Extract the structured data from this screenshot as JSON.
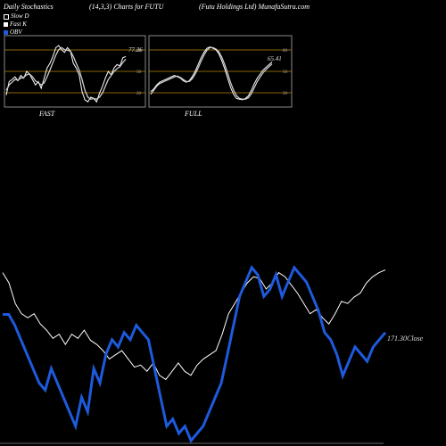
{
  "header": {
    "left": "Daily Stochastics",
    "mid": "(14,3,3) Charts for FUTU",
    "right": "(Futu  Holdings Ltd) MunafaSutra.com"
  },
  "legend": [
    {
      "label": "Slow  D",
      "color": "#ffffff"
    },
    {
      "label": "Fast K",
      "color": "#ffffff"
    },
    {
      "label": "OBV",
      "color": "#1e5adc"
    }
  ],
  "colors": {
    "price": "#ffffff",
    "obv": "#1e5adc",
    "band": "#b8860b",
    "panel_border": "#888888"
  },
  "chart_data": [
    {
      "type": "line",
      "title": "FAST",
      "value_label": "77.26",
      "levels": [
        20,
        50,
        80
      ],
      "level_labels": [
        "20",
        "50",
        "80"
      ],
      "ylim": [
        0,
        100
      ],
      "series": [
        {
          "values": [
            15,
            35,
            38,
            42,
            36,
            44,
            40,
            50,
            46,
            38,
            30,
            35,
            25,
            40,
            55,
            62,
            72,
            85,
            88,
            82,
            78,
            85,
            80,
            62,
            55,
            45,
            20,
            8,
            5,
            12,
            10,
            5,
            18,
            28,
            40,
            50,
            45,
            55,
            60,
            58,
            70,
            72
          ]
        },
        {
          "values": [
            22,
            30,
            34,
            38,
            37,
            40,
            41,
            45,
            46,
            42,
            36,
            33,
            30,
            33,
            42,
            52,
            63,
            74,
            82,
            85,
            82,
            81,
            80,
            72,
            62,
            52,
            38,
            22,
            12,
            9,
            10,
            9,
            12,
            18,
            28,
            38,
            44,
            50,
            54,
            57,
            63,
            68
          ]
        }
      ]
    },
    {
      "type": "line",
      "title": "FULL",
      "value_label": "65.41",
      "levels": [
        20,
        50,
        80
      ],
      "level_labels": [
        "20",
        "50",
        "80"
      ],
      "ylim": [
        0,
        100
      ],
      "series": [
        {
          "values": [
            20,
            24,
            30,
            34,
            36,
            38,
            40,
            42,
            44,
            42,
            40,
            36,
            34,
            36,
            42,
            50,
            60,
            70,
            78,
            84,
            86,
            84,
            82,
            76,
            66,
            54,
            40,
            26,
            16,
            10,
            9,
            8,
            10,
            14,
            22,
            32,
            40,
            46,
            52,
            56,
            60,
            64
          ]
        },
        {
          "values": [
            16,
            22,
            28,
            32,
            34,
            36,
            38,
            40,
            42,
            43,
            41,
            38,
            35,
            35,
            39,
            46,
            55,
            65,
            74,
            81,
            85,
            85,
            83,
            79,
            71,
            60,
            47,
            33,
            22,
            14,
            10,
            9,
            9,
            11,
            17,
            26,
            35,
            42,
            48,
            53,
            57,
            61
          ]
        }
      ]
    },
    {
      "type": "line",
      "value_label": "171.30",
      "value_suffix": "Close",
      "series": [
        {
          "values": [
            170,
            165,
            155,
            150,
            148,
            150,
            145,
            142,
            138,
            140,
            135,
            140,
            138,
            142,
            137,
            135,
            132,
            128,
            130,
            132,
            128,
            124,
            125,
            122,
            126,
            120,
            118,
            122,
            126,
            122,
            120,
            125,
            128,
            130,
            132,
            140,
            150,
            155,
            160,
            165,
            168,
            167,
            162,
            165,
            170,
            168,
            164,
            160,
            155,
            150,
            152,
            148,
            145,
            150,
            156,
            155,
            158,
            160,
            165,
            168,
            170,
            171.3
          ]
        },
        {
          "values": [
            175,
            175,
            160,
            140,
            120,
            100,
            80,
            70,
            100,
            80,
            60,
            40,
            20,
            60,
            40,
            100,
            80,
            120,
            140,
            130,
            150,
            140,
            160,
            150,
            140,
            100,
            60,
            20,
            30,
            10,
            20,
            0,
            10,
            20,
            40,
            60,
            80,
            120,
            160,
            200,
            220,
            240,
            230,
            200,
            210,
            230,
            200,
            220,
            240,
            230,
            220,
            200,
            180,
            150,
            140,
            120,
            90,
            110,
            130,
            120,
            110,
            130,
            140,
            150
          ]
        }
      ]
    }
  ]
}
